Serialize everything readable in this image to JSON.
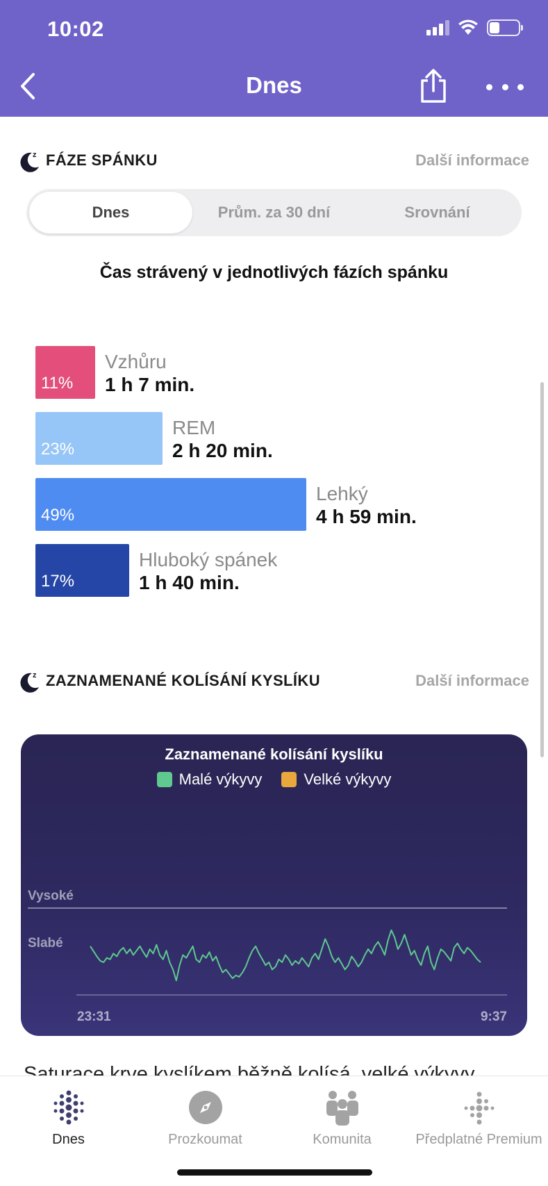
{
  "status_bar": {
    "time": "10:02"
  },
  "nav": {
    "title": "Dnes"
  },
  "sleep_phases": {
    "title": "FÁZE SPÁNKU",
    "more_info": "Další informace",
    "tabs": [
      "Dnes",
      "Prům. za 30 dní",
      "Srovnání"
    ],
    "active_tab": 0,
    "chart_title": "Čas strávený v jednotlivých fázích spánku",
    "stages": [
      {
        "name": "Vzhůru",
        "percent_label": "11%",
        "percent": 11,
        "duration": "1 h 7 min.",
        "color": "#e34f7a"
      },
      {
        "name": "REM",
        "percent_label": "23%",
        "percent": 23,
        "duration": "2 h 20 min.",
        "color": "#96c5f7"
      },
      {
        "name": "Lehký",
        "percent_label": "49%",
        "percent": 49,
        "duration": "4 h 59 min.",
        "color": "#4f8cf2"
      },
      {
        "name": "Hluboký spánek",
        "percent_label": "17%",
        "percent": 17,
        "duration": "1 h 40 min.",
        "color": "#2546a6"
      }
    ]
  },
  "oxygen": {
    "title": "ZAZNAMENANÉ KOLÍSÁNÍ KYSLÍKU",
    "more_info": "Další informace",
    "chart_data": {
      "type": "line",
      "title": "Zaznamenané kolísání kyslíku",
      "legend": [
        {
          "name": "Malé výkyvy",
          "color": "#5fc98f"
        },
        {
          "name": "Velké výkyvy",
          "color": "#e8a83e"
        }
      ],
      "y_labels": [
        "Vysoké",
        "Slabé"
      ],
      "x_labels": [
        "23:31",
        "9:37"
      ],
      "series": [
        {
          "name": "Malé výkyvy",
          "color": "#5fc98f",
          "values": [
            0.62,
            0.55,
            0.48,
            0.42,
            0.4,
            0.46,
            0.44,
            0.52,
            0.48,
            0.56,
            0.6,
            0.52,
            0.58,
            0.5,
            0.56,
            0.62,
            0.54,
            0.47,
            0.58,
            0.52,
            0.64,
            0.5,
            0.44,
            0.56,
            0.4,
            0.3,
            0.15,
            0.36,
            0.5,
            0.46,
            0.54,
            0.62,
            0.44,
            0.4,
            0.5,
            0.46,
            0.54,
            0.42,
            0.48,
            0.36,
            0.26,
            0.3,
            0.24,
            0.18,
            0.22,
            0.2,
            0.26,
            0.34,
            0.46,
            0.56,
            0.62,
            0.52,
            0.44,
            0.36,
            0.4,
            0.3,
            0.34,
            0.44,
            0.4,
            0.5,
            0.44,
            0.36,
            0.42,
            0.38,
            0.46,
            0.4,
            0.34,
            0.46,
            0.52,
            0.44,
            0.58,
            0.72,
            0.62,
            0.48,
            0.4,
            0.46,
            0.38,
            0.3,
            0.36,
            0.48,
            0.42,
            0.34,
            0.4,
            0.5,
            0.58,
            0.52,
            0.62,
            0.68,
            0.6,
            0.5,
            0.7,
            0.84,
            0.74,
            0.58,
            0.66,
            0.78,
            0.64,
            0.5,
            0.56,
            0.44,
            0.36,
            0.52,
            0.62,
            0.4,
            0.3,
            0.46,
            0.58,
            0.54,
            0.48,
            0.42,
            0.6,
            0.66,
            0.58,
            0.52,
            0.6,
            0.56,
            0.5,
            0.44,
            0.4
          ]
        }
      ]
    }
  },
  "cut_text": "Saturace krve kyslíkem běžně kolísá, velké výkyvy",
  "tabbar": {
    "items": [
      {
        "label": "Dnes",
        "icon": "fitbit-dots-icon",
        "active": true
      },
      {
        "label": "Prozkoumat",
        "icon": "compass-icon",
        "active": false
      },
      {
        "label": "Komunita",
        "icon": "community-icon",
        "active": false
      },
      {
        "label": "Předplatné Premium",
        "icon": "premium-dots-icon",
        "active": false
      }
    ]
  }
}
